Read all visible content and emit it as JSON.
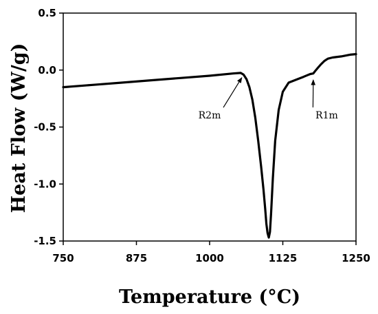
{
  "chart_data": {
    "type": "line",
    "title": "",
    "xlabel": "Temperature (°C)",
    "ylabel": "Heat Flow (W/g)",
    "xlim": [
      750,
      1250
    ],
    "ylim": [
      -1.5,
      0.5
    ],
    "xticks": [
      750,
      875,
      1000,
      1125,
      1250
    ],
    "xtick_labels": [
      "750",
      "875",
      "1000",
      "1125",
      "1250"
    ],
    "yticks": [
      0.5,
      0.0,
      -0.5,
      -1.0,
      -1.5
    ],
    "ytick_labels": [
      "0.5",
      "0.0",
      "-0.5",
      "-1.0",
      "-1.5"
    ],
    "grid": false,
    "series": [
      {
        "color": "#000000",
        "x": [
          750,
          800,
          850,
          900,
          950,
          1000,
          1040,
          1053,
          1058,
          1063,
          1068,
          1073,
          1078,
          1083,
          1088,
          1092,
          1095,
          1097,
          1099,
          1101,
          1103,
          1105,
          1108,
          1112,
          1118,
          1125,
          1135,
          1150,
          1160,
          1167,
          1172,
          1177,
          1180,
          1185,
          1190,
          1196,
          1202,
          1210,
          1225,
          1240,
          1250
        ],
        "y": [
          -0.15,
          -0.13,
          -0.11,
          -0.09,
          -0.07,
          -0.05,
          -0.03,
          -0.025,
          -0.04,
          -0.08,
          -0.15,
          -0.26,
          -0.42,
          -0.62,
          -0.85,
          -1.05,
          -1.22,
          -1.35,
          -1.43,
          -1.47,
          -1.42,
          -1.25,
          -0.95,
          -0.62,
          -0.35,
          -0.19,
          -0.11,
          -0.08,
          -0.06,
          -0.045,
          -0.035,
          -0.03,
          -0.01,
          0.02,
          0.05,
          0.08,
          0.1,
          0.11,
          0.12,
          0.135,
          0.14
        ]
      }
    ],
    "annotations": [
      {
        "text": "R2m",
        "target": [
          1055,
          -0.03
        ],
        "text_at": [
          1000,
          -0.34
        ]
      },
      {
        "text": "R1m",
        "target": [
          1177,
          -0.05
        ],
        "text_at": [
          1200,
          -0.34
        ]
      }
    ]
  }
}
